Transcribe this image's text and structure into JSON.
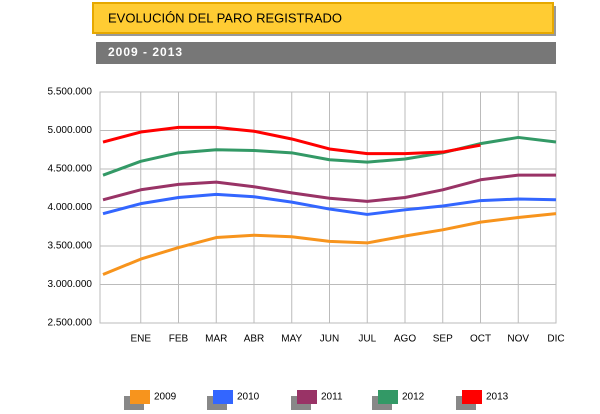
{
  "header": {
    "title": "EVOLUCIÓN DEL PARO REGISTRADO",
    "subtitle": "2009 - 2013"
  },
  "chart_data": {
    "type": "line",
    "categories": [
      null,
      "ENE",
      "FEB",
      "MAR",
      "ABR",
      "MAY",
      "JUN",
      "JUL",
      "AGO",
      "SEP",
      "OCT",
      "NOV",
      "DIC"
    ],
    "ylim": [
      2500000,
      5500000
    ],
    "yticks": [
      {
        "value": 2500000,
        "label": "2.500.000"
      },
      {
        "value": 3000000,
        "label": "3.000.000"
      },
      {
        "value": 3500000,
        "label": "3.500.000"
      },
      {
        "value": 4000000,
        "label": "4.000.000"
      },
      {
        "value": 4500000,
        "label": "4.500.000"
      },
      {
        "value": 5000000,
        "label": "5.000.000"
      },
      {
        "value": 5500000,
        "label": "5.500.000"
      }
    ],
    "grid": true,
    "series": [
      {
        "name": "2009",
        "color": "#f7941d",
        "values": [
          3130000,
          3330000,
          3480000,
          3610000,
          3640000,
          3620000,
          3560000,
          3540000,
          3630000,
          3710000,
          3810000,
          3870000,
          3920000
        ]
      },
      {
        "name": "2010",
        "color": "#3366ff",
        "values": [
          3920000,
          4050000,
          4130000,
          4170000,
          4140000,
          4070000,
          3980000,
          3910000,
          3970000,
          4020000,
          4090000,
          4110000,
          4100000
        ]
      },
      {
        "name": "2011",
        "color": "#993366",
        "values": [
          4100000,
          4230000,
          4300000,
          4330000,
          4270000,
          4190000,
          4120000,
          4080000,
          4130000,
          4230000,
          4360000,
          4420000,
          4420000
        ]
      },
      {
        "name": "2012",
        "color": "#339966",
        "values": [
          4420000,
          4600000,
          4710000,
          4750000,
          4740000,
          4710000,
          4620000,
          4590000,
          4630000,
          4710000,
          4830000,
          4910000,
          4850000
        ]
      },
      {
        "name": "2013",
        "color": "#ff0000",
        "values": [
          4850000,
          4980000,
          5040000,
          5040000,
          4990000,
          4890000,
          4760000,
          4700000,
          4700000,
          4720000,
          4810000,
          null,
          null
        ]
      }
    ]
  }
}
